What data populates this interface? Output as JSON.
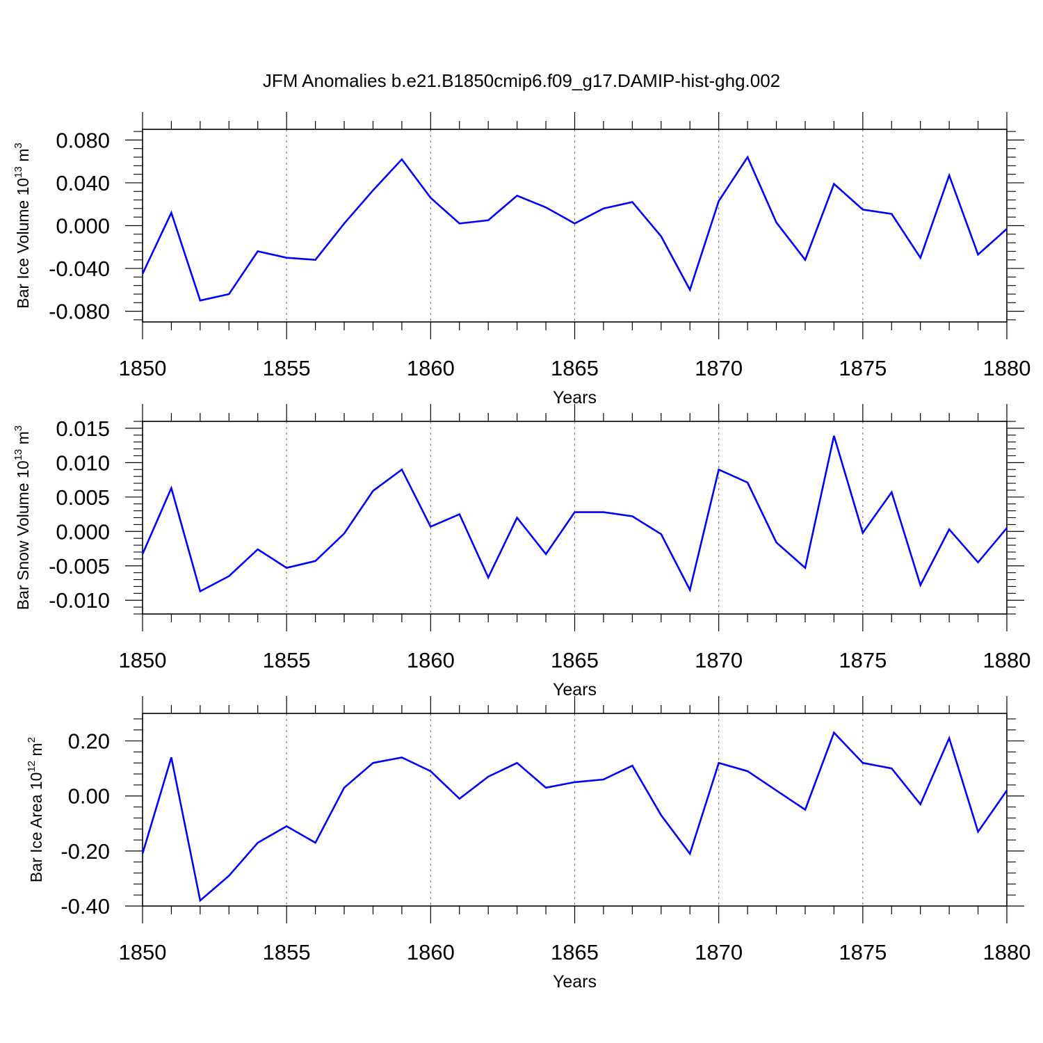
{
  "title": "JFM Anomalies b.e21.B1850cmip6.f09_g17.DAMIP-hist-ghg.002",
  "line_color": "#0000ff",
  "chart_data": [
    {
      "type": "line",
      "name": "ice-volume",
      "ylabel": {
        "main": "Bar Ice Volume 10",
        "exp": "13",
        "unit": " m",
        "unit_exp": "3"
      },
      "xlabel": "Years",
      "xlim": [
        1850,
        1880
      ],
      "ylim": [
        -0.09,
        0.09
      ],
      "xticks": [
        1850,
        1855,
        1860,
        1865,
        1870,
        1875,
        1880
      ],
      "yticks": [
        -0.08,
        -0.04,
        0.0,
        0.04,
        0.08
      ],
      "ytick_labels": [
        "-0.080",
        "-0.040",
        "0.000",
        "0.040",
        "0.080"
      ],
      "yminor_step": 0.008,
      "x": [
        1850,
        1851,
        1852,
        1853,
        1854,
        1855,
        1856,
        1857,
        1858,
        1859,
        1860,
        1861,
        1862,
        1863,
        1864,
        1865,
        1866,
        1867,
        1868,
        1869,
        1870,
        1871,
        1872,
        1873,
        1874,
        1875,
        1876,
        1877,
        1878,
        1879,
        1880
      ],
      "values": [
        -0.045,
        0.012,
        -0.07,
        -0.064,
        -0.024,
        -0.03,
        -0.032,
        0.002,
        0.033,
        0.062,
        0.026,
        0.002,
        0.005,
        0.028,
        0.017,
        0.002,
        0.016,
        0.022,
        -0.01,
        -0.06,
        0.023,
        0.064,
        0.003,
        -0.032,
        0.039,
        0.015,
        0.011,
        -0.03,
        0.047,
        -0.027,
        -0.003
      ]
    },
    {
      "type": "line",
      "name": "snow-volume",
      "ylabel": {
        "main": "Bar Snow Volume 10",
        "exp": "13",
        "unit": " m",
        "unit_exp": "3"
      },
      "xlabel": "Years",
      "xlim": [
        1850,
        1880
      ],
      "ylim": [
        -0.012,
        0.016
      ],
      "xticks": [
        1850,
        1855,
        1860,
        1865,
        1870,
        1875,
        1880
      ],
      "yticks": [
        -0.01,
        -0.005,
        0.0,
        0.005,
        0.01,
        0.015
      ],
      "ytick_labels": [
        "-0.010",
        "-0.005",
        "0.000",
        "0.005",
        "0.010",
        "0.015"
      ],
      "yminor_step": 0.001,
      "x": [
        1850,
        1851,
        1852,
        1853,
        1854,
        1855,
        1856,
        1857,
        1858,
        1859,
        1860,
        1861,
        1862,
        1863,
        1864,
        1865,
        1866,
        1867,
        1868,
        1869,
        1870,
        1871,
        1872,
        1873,
        1874,
        1875,
        1876,
        1877,
        1878,
        1879,
        1880
      ],
      "values": [
        -0.0033,
        0.0063,
        -0.0087,
        -0.0065,
        -0.0026,
        -0.0053,
        -0.0043,
        -0.0003,
        0.0059,
        0.009,
        0.0007,
        0.0025,
        -0.0067,
        0.002,
        -0.0033,
        0.0028,
        0.0028,
        0.0022,
        -0.0004,
        -0.0085,
        0.009,
        0.0071,
        -0.0016,
        -0.0053,
        0.0139,
        -0.0002,
        0.0057,
        -0.0078,
        0.0003,
        -0.0045,
        0.0005
      ]
    },
    {
      "type": "line",
      "name": "ice-area",
      "ylabel": {
        "main": "Bar Ice Area 10",
        "exp": "12",
        "unit": " m",
        "unit_exp": "2"
      },
      "xlabel": "Years",
      "xlim": [
        1850,
        1880
      ],
      "ylim": [
        -0.4,
        0.3
      ],
      "xticks": [
        1850,
        1855,
        1860,
        1865,
        1870,
        1875,
        1880
      ],
      "yticks": [
        -0.4,
        -0.2,
        0.0,
        0.2
      ],
      "ytick_labels": [
        "-0.40",
        "-0.20",
        "0.00",
        "0.20"
      ],
      "yminor_step": 0.04,
      "x": [
        1850,
        1851,
        1852,
        1853,
        1854,
        1855,
        1856,
        1857,
        1858,
        1859,
        1860,
        1861,
        1862,
        1863,
        1864,
        1865,
        1866,
        1867,
        1868,
        1869,
        1870,
        1871,
        1872,
        1873,
        1874,
        1875,
        1876,
        1877,
        1878,
        1879,
        1880
      ],
      "values": [
        -0.21,
        0.14,
        -0.38,
        -0.29,
        -0.17,
        -0.11,
        -0.17,
        0.03,
        0.12,
        0.14,
        0.09,
        -0.01,
        0.07,
        0.12,
        0.03,
        0.05,
        0.06,
        0.11,
        -0.07,
        -0.21,
        0.12,
        0.09,
        0.02,
        -0.05,
        0.23,
        0.12,
        0.1,
        -0.03,
        0.21,
        -0.13,
        0.02
      ]
    }
  ]
}
